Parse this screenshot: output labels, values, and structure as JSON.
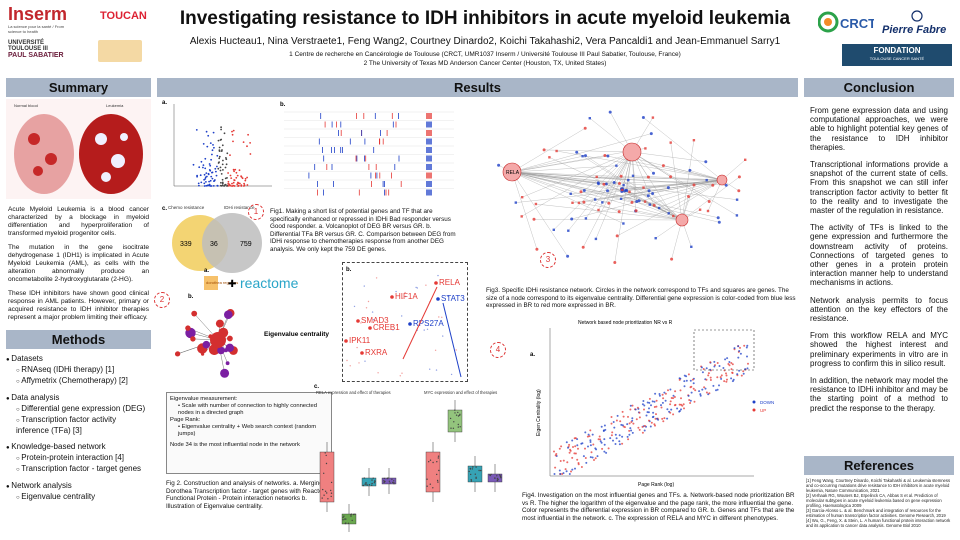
{
  "header": {
    "title": "Investigating resistance to IDH inhibitors in acute myeloid leukemia",
    "authors": "Alexis Hucteau1, Nina Verstraete1, Feng Wang2, Courtney Dinardo2, Koichi Takahashi2, Vera Pancaldi1 and Jean-Emmanuel Sarry1",
    "affil1": "1 Centre de recherche en Cancérologie de Toulouse (CRCT, UMR1037 Inserm / Université Toulouse III Paul Sabatier, Toulouse, France)",
    "affil2": "2 The University of Texas MD Anderson Cancer Center (Houston, TX, United States)",
    "logos": {
      "inserm": "Inserm",
      "inserm_sub": "La science pour la santé / From science to health",
      "toucan": "TOUCAN",
      "ups1": "UNIVERSITÉ",
      "ups2": "TOULOUSE III",
      "ups3": "PAUL SABATIER",
      "crct": "CRCT",
      "pierre_fabre": "Pierre Fabre",
      "fondation": "FONDATION",
      "fondation_sub": "TOULOUSE CANCER SANTÉ"
    }
  },
  "summary": {
    "heading": "Summary",
    "p1": "Acute Myeloid Leukemia is a blood cancer characterized by a blockage in myeloid differentiation and hyperproliferation of transformed myeloid progenitor cells.",
    "p2": "The mutation in the gene isocitrate dehydrogenase 1 (IDH1) is implicated in Acute Myeloid Leukemia (AML), as cells with the alteration abnormally produce an oncometabolite 2-hydroxyglutarate (2-HG).",
    "p3": "These IDH inhibitors have shown good clinical response in AML patients. However, primary or acquired resistance to IDH inhibitor therapies represent a major problem limiting their efficacy.",
    "image_labels": [
      "Normal blood",
      "Leukemia"
    ]
  },
  "methods": {
    "heading": "Methods",
    "items": [
      {
        "level": 1,
        "text": "Datasets"
      },
      {
        "level": 2,
        "text": "RNAseq (IDHi therapy) [1]"
      },
      {
        "level": 2,
        "text": "Affymetrix (Chemotherapy) [2]"
      },
      {
        "level": 1,
        "text": "Data analysis"
      },
      {
        "level": 2,
        "text": "Differential gene expression (DEG)"
      },
      {
        "level": 2,
        "text": "Transcription factor activity inference (TFa) [3]"
      },
      {
        "level": 1,
        "text": "Knowledge-based network"
      },
      {
        "level": 2,
        "text": "Protein-protein interaction [4]"
      },
      {
        "level": 2,
        "text": "Transcription factor - target genes"
      },
      {
        "level": 1,
        "text": "Network analysis"
      },
      {
        "level": 2,
        "text": "Eigenvalue centrality"
      }
    ]
  },
  "results": {
    "heading": "Results",
    "fig1_caption": "Fig1. Making a short list of potential genes and TF that are specifically enhanced or repressed in IDHi Bad responder versus Good responder. a. Volcanoplot of DEG BR versus GR. b. Differential TFa BR versus GR. C. Comparison between DEG from IDHi response to chemotherapies response from another DEG analysis. We only kept the 759 DE genes.",
    "venn": {
      "left": "339",
      "mid": "36",
      "right": "759",
      "label_left": "Chemo resistance",
      "label_right": "IDHi resistance"
    },
    "fig2_caption": "Fig 2. Construction and analysis of networks. a. Merging of Dorothea Transcription factor - target genes with Reactom Functional Protein - Protein interaction networks b. Illustration of Eigenvalue centrality.",
    "eigen_label": "Eigenvalue centrality",
    "dorothea": "dorothea regulons",
    "reactome": "reactome",
    "eigen_box": {
      "t1": "Eigenvalue measurement:",
      "b1": "Scale with number of connection to highly connected nodes in a directed graph",
      "t2": "Page Rank:",
      "b2": "Eigenvalue centrality + Web search context (random jumps)",
      "t3": "Node 34 is the most influential node in the network"
    },
    "fig3_caption": "Fig3. Specific IDHi resistance network. Circles in the network correspond to TFs and squares are genes. The size of a node correspond to its eigenvalue centrality. Differential gene expression is color-coded from blue less expressed in BR to red more expressed in BR.",
    "fig4_caption": "Fig4. Investigation on the most influential genes and TFs. a. Network-based node prioritization BR vs R. The higher the logarithm of the eigenvalue and the page rank, the more influential the gene. Color represents the differential expression in BR compared to GR. b. Genes and TFs that are the most influential in the network. c. The expression of RELA and MYC in different phenotypes.",
    "fig4_plot_title": "Network based node prioritization NR vs R",
    "fig4_xlabel": "Page Rank (log)",
    "fig4_ylabel": "Eigen Centrality (log)",
    "fig4_legend": [
      "DOWN",
      "UP"
    ],
    "zoom_genes": [
      "RELA",
      "HIF1A",
      "STAT3",
      "SMAD3",
      "CREB1",
      "RPS27A",
      "IPK11",
      "RXRA"
    ],
    "boxplot_titles": [
      "RELA expression and effect of therapies",
      "MYC expression and effect of therapies"
    ],
    "panel_letters": [
      "a.",
      "b.",
      "c.",
      "a.",
      "b.",
      "a.",
      "b.",
      "c."
    ],
    "badges": [
      "1",
      "2",
      "3",
      "4"
    ],
    "rela_net_label": "RELA"
  },
  "conclusion": {
    "heading": "Conclusion",
    "p1": "From gene expression data and using computational approaches, we were able to highlight potential key genes of the resistance to IDH inhibitor therapies.",
    "p2": "Transcriptional informations provide a snapshot of the current state of cells. From this snapshot we can still infer transcription factor activity to better fit to the reality and to investigate the master of the regulation in resistance.",
    "p3": "The activity of TFs is linked to the gene expression and furthermore the downstream activity of proteins. Connections of targeted genes to other genes in a protein protein interaction manner help to understand mechanisms in actions.",
    "p4": "Network analysis permits to focus attention on the key effectors of the resistance.",
    "p5": "From this workflow RELA and MYC showed the highest interest and preliminary experiments in vitro are in progress to confirm this in silico result.",
    "p6": "In addition, the network may model the resistance to IDHi inhibitor and may be the starting point of a method to predict the response to the therapy."
  },
  "references": {
    "heading": "References",
    "items": [
      "[1] Feng Wang, Courtney Dinardo, Koichi Takahashi & al. Leukemia stemness and co-occurring mutations drive resistance to IDH inhibitors in acute myeloid leukemia, Nature Communication, 2021",
      "[2] Verhaak RG, Wouters BJ, Erpelinck CA, Abbas S et al. Prediction of molecular subtypes in acute myeloid leukemia based on gene expression profiling. Haematologica 2009",
      "[3] Garcia-Alonso L. & al. Benchmark and integration of resources for the estimation of human transcription factor activities. Genome Research, 2019",
      "[4] Wu, G., Feng, X. & Stein, L. A human functional protein interaction network and its application to cancer data analysis. Genome Biol 2010"
    ]
  },
  "colors": {
    "section_header": "#a9b6c8",
    "up": "#e53935",
    "down": "#1e40c8",
    "venn_left": "#f2d26b",
    "venn_right": "#bdbdbd"
  }
}
